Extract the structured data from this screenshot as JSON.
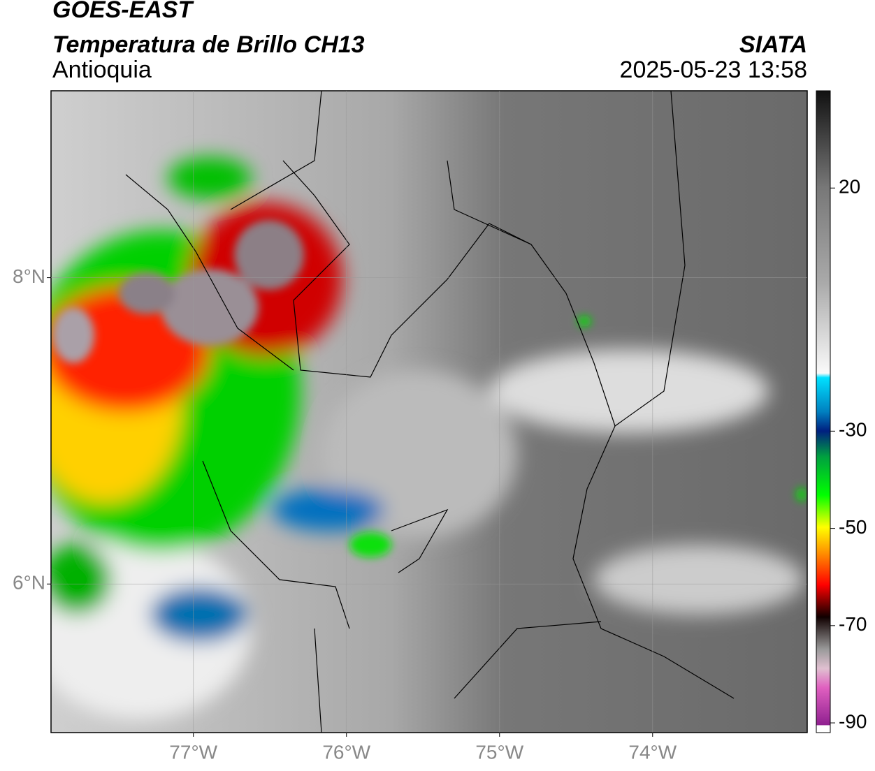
{
  "header": {
    "title": "GOES-EAST",
    "subtitle": "Temperatura de Brillo CH13",
    "region": "Antioquia",
    "source": "SIATA",
    "datetime": "2025-05-23 13:58"
  },
  "map": {
    "type": "map",
    "xlim": [
      -77.93,
      -72.99
    ],
    "ylim": [
      5.03,
      9.22
    ],
    "xticks": [
      {
        "value": -77,
        "label": "77°W"
      },
      {
        "value": -76,
        "label": "76°W"
      },
      {
        "value": -75,
        "label": "75°W"
      },
      {
        "value": -74,
        "label": "74°W"
      }
    ],
    "yticks": [
      {
        "value": 6,
        "label": "6°N"
      },
      {
        "value": 8,
        "label": "8°N"
      }
    ],
    "grid": true
  },
  "colorbar": {
    "lim": [
      -92,
      40
    ],
    "ticks": [
      20,
      -30,
      -50,
      -70,
      -90
    ]
  }
}
